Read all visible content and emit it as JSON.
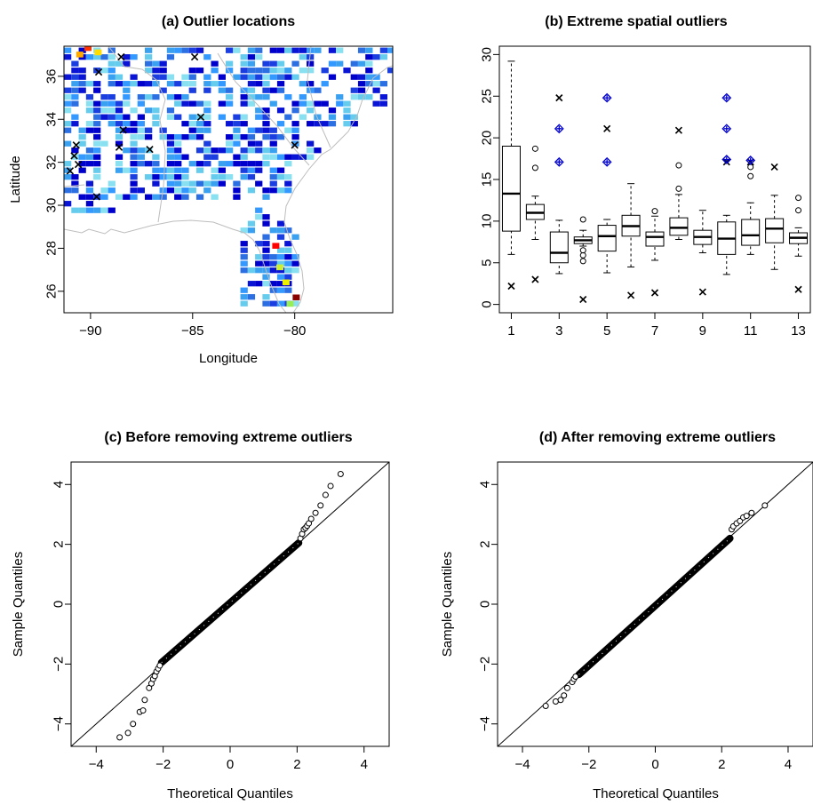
{
  "chart_data": [
    {
      "id": "a",
      "type": "heatmap",
      "title": "(a) Outlier locations",
      "xlabel": "Longitude",
      "ylabel": "Latitude",
      "xlim": [
        -91.3,
        -75.2
      ],
      "ylim": [
        25.0,
        37.4
      ],
      "xticks": [
        -90,
        -85,
        -80
      ],
      "xtick_labels": [
        "−90",
        "−85",
        "−80"
      ],
      "yticks": [
        26,
        28,
        30,
        32,
        34,
        36
      ],
      "ytick_labels": [
        "26",
        "28",
        "30",
        "32",
        "34",
        "36"
      ],
      "colors": {
        "low": "#0000cc",
        "mid": "#2c7fe0",
        "high": "#8fd8f0",
        "extreme": "#ff2a00",
        "marker": "#000000",
        "border": "#c0c0c0"
      },
      "hotspots": [
        {
          "lon": -90.3,
          "lat": 37.2,
          "color": "#ff3300"
        },
        {
          "lon": -90.7,
          "lat": 36.9,
          "color": "#ffaa00"
        },
        {
          "lon": -89.8,
          "lat": 37.0,
          "color": "#ffdd00"
        },
        {
          "lon": -81.1,
          "lat": 28.0,
          "color": "#ff0000"
        },
        {
          "lon": -80.9,
          "lat": 27.0,
          "color": "#ccee33"
        },
        {
          "lon": -80.6,
          "lat": 26.3,
          "color": "#eeee00"
        },
        {
          "lon": -80.4,
          "lat": 25.3,
          "color": "#99ee55"
        },
        {
          "lon": -80.1,
          "lat": 25.6,
          "color": "#880000"
        }
      ],
      "outlier_points": [
        {
          "lon": -89.6,
          "lat": 36.2
        },
        {
          "lon": -88.5,
          "lat": 36.9
        },
        {
          "lon": -84.9,
          "lat": 36.9
        },
        {
          "lon": -84.6,
          "lat": 34.1
        },
        {
          "lon": -88.4,
          "lat": 33.5
        },
        {
          "lon": -88.6,
          "lat": 32.7
        },
        {
          "lon": -87.1,
          "lat": 32.6
        },
        {
          "lon": -90.7,
          "lat": 32.8
        },
        {
          "lon": -90.8,
          "lat": 32.3
        },
        {
          "lon": -90.6,
          "lat": 31.9
        },
        {
          "lon": -91.0,
          "lat": 31.6
        },
        {
          "lon": -89.7,
          "lat": 30.4
        },
        {
          "lon": -80.0,
          "lat": 32.8
        }
      ]
    },
    {
      "id": "b",
      "type": "box",
      "title": "(b) Extreme spatial outliers",
      "xlim": [
        0.5,
        13.5
      ],
      "ylim": [
        -1,
        31
      ],
      "xticks": [
        1,
        3,
        5,
        7,
        9,
        11,
        13
      ],
      "xtick_labels": [
        "1",
        "3",
        "5",
        "7",
        "9",
        "11",
        "13"
      ],
      "yticks": [
        0,
        5,
        10,
        15,
        20,
        25,
        30
      ],
      "ytick_labels": [
        "0",
        "5",
        "10",
        "15",
        "20",
        "25",
        "30"
      ],
      "colors": {
        "box": "#000000",
        "diamond": "#0000cc"
      },
      "boxes": [
        {
          "x": 1,
          "whislo": 6.0,
          "q1": 8.8,
          "med": 13.3,
          "q3": 19.0,
          "whishi": 29.2,
          "fliers": [],
          "extreme": [
            2.2
          ],
          "flagged": []
        },
        {
          "x": 2,
          "whislo": 7.8,
          "q1": 10.2,
          "med": 11.0,
          "q3": 12.0,
          "whishi": 13.0,
          "fliers": [
            16.4,
            18.7
          ],
          "extreme": [
            3.0
          ],
          "flagged": []
        },
        {
          "x": 3,
          "whislo": 3.7,
          "q1": 5.0,
          "med": 6.2,
          "q3": 8.7,
          "whishi": 10.1,
          "fliers": [],
          "extreme": [
            24.8
          ],
          "flagged": [
            17.1,
            21.1
          ]
        },
        {
          "x": 4,
          "whislo": 7.0,
          "q1": 7.3,
          "med": 7.7,
          "q3": 8.1,
          "whishi": 8.9,
          "fliers": [
            5.2,
            5.9,
            6.5,
            10.2
          ],
          "extreme": [
            0.6
          ],
          "flagged": []
        },
        {
          "x": 5,
          "whislo": 3.8,
          "q1": 6.4,
          "med": 8.2,
          "q3": 9.5,
          "whishi": 10.2,
          "fliers": [],
          "extreme": [
            21.1
          ],
          "flagged": [
            17.1,
            24.8
          ]
        },
        {
          "x": 6,
          "whislo": 4.5,
          "q1": 8.2,
          "med": 9.4,
          "q3": 10.7,
          "whishi": 14.5,
          "fliers": [],
          "extreme": [
            1.1
          ],
          "flagged": []
        },
        {
          "x": 7,
          "whislo": 5.3,
          "q1": 7.0,
          "med": 8.1,
          "q3": 8.7,
          "whishi": 10.6,
          "fliers": [
            11.2
          ],
          "extreme": [
            1.4
          ],
          "flagged": []
        },
        {
          "x": 8,
          "whislo": 7.8,
          "q1": 8.3,
          "med": 9.2,
          "q3": 10.4,
          "whishi": 13.2,
          "fliers": [
            13.9,
            16.7
          ],
          "extreme": [
            20.9
          ],
          "flagged": []
        },
        {
          "x": 9,
          "whislo": 6.2,
          "q1": 7.2,
          "med": 8.1,
          "q3": 8.9,
          "whishi": 11.3,
          "fliers": [],
          "extreme": [
            1.5
          ],
          "flagged": []
        },
        {
          "x": 10,
          "whislo": 3.6,
          "q1": 6.0,
          "med": 7.9,
          "q3": 9.9,
          "whishi": 10.7,
          "fliers": [],
          "extreme": [
            17.1
          ],
          "flagged": [
            17.4,
            21.1,
            24.8
          ]
        },
        {
          "x": 11,
          "whislo": 6.0,
          "q1": 7.1,
          "med": 8.3,
          "q3": 10.2,
          "whishi": 12.2,
          "fliers": [
            15.4,
            16.5
          ],
          "extreme": [
            17.1
          ],
          "flagged": [
            17.3
          ]
        },
        {
          "x": 12,
          "whislo": 4.2,
          "q1": 7.4,
          "med": 9.1,
          "q3": 10.3,
          "whishi": 13.1,
          "fliers": [],
          "extreme": [
            16.5
          ],
          "flagged": []
        },
        {
          "x": 13,
          "whislo": 5.8,
          "q1": 7.3,
          "med": 8.0,
          "q3": 8.6,
          "whishi": 9.2,
          "fliers": [
            11.3,
            12.8
          ],
          "extreme": [
            1.8
          ],
          "flagged": []
        }
      ]
    },
    {
      "id": "c",
      "type": "scatter",
      "title": "(c) Before removing extreme outliers",
      "xlabel": "Theoretical Quantiles",
      "ylabel": "Sample Quantiles",
      "xlim": [
        -4.75,
        4.75
      ],
      "ylim": [
        -4.75,
        4.75
      ],
      "xticks": [
        -4,
        -2,
        0,
        2,
        4
      ],
      "xtick_labels": [
        "−4",
        "−2",
        "0",
        "2",
        "4"
      ],
      "yticks": [
        -4,
        -2,
        0,
        2,
        4
      ],
      "ytick_labels": [
        "−4",
        "−2",
        "0",
        "2",
        "4"
      ],
      "reference_line": {
        "slope": 1,
        "intercept": 0
      },
      "dense_band": {
        "from": [
          -2.05,
          -1.95
        ],
        "to": [
          2.05,
          2.05
        ]
      },
      "tail_points": [
        [
          -3.3,
          -4.45
        ],
        [
          -3.05,
          -4.3
        ],
        [
          -2.9,
          -4.0
        ],
        [
          -2.7,
          -3.6
        ],
        [
          -2.6,
          -3.55
        ],
        [
          -2.55,
          -3.2
        ],
        [
          -2.42,
          -2.8
        ],
        [
          -2.35,
          -2.65
        ],
        [
          -2.3,
          -2.5
        ],
        [
          -2.25,
          -2.4
        ],
        [
          -2.2,
          -2.25
        ],
        [
          -2.15,
          -2.15
        ],
        [
          -2.1,
          -2.05
        ],
        [
          2.1,
          2.2
        ],
        [
          2.15,
          2.35
        ],
        [
          2.2,
          2.5
        ],
        [
          2.25,
          2.55
        ],
        [
          2.3,
          2.62
        ],
        [
          2.35,
          2.7
        ],
        [
          2.42,
          2.85
        ],
        [
          2.55,
          3.05
        ],
        [
          2.7,
          3.3
        ],
        [
          2.85,
          3.65
        ],
        [
          3.0,
          3.95
        ],
        [
          3.3,
          4.35
        ]
      ]
    },
    {
      "id": "d",
      "type": "scatter",
      "title": "(d) After removing extreme outliers",
      "xlabel": "Theoretical Quantiles",
      "ylabel": "Sample Quantiles",
      "xlim": [
        -4.75,
        4.75
      ],
      "ylim": [
        -4.75,
        4.75
      ],
      "xticks": [
        -4,
        -2,
        0,
        2,
        4
      ],
      "xtick_labels": [
        "−4",
        "−2",
        "0",
        "2",
        "4"
      ],
      "yticks": [
        -4,
        -2,
        0,
        2,
        4
      ],
      "ytick_labels": [
        "−4",
        "−2",
        "0",
        "2",
        "4"
      ],
      "reference_line": {
        "slope": 1,
        "intercept": 0
      },
      "dense_band": {
        "from": [
          -2.3,
          -2.35
        ],
        "to": [
          2.25,
          2.2
        ]
      },
      "tail_points": [
        [
          -3.3,
          -3.4
        ],
        [
          -3.0,
          -3.25
        ],
        [
          -2.85,
          -3.2
        ],
        [
          -2.75,
          -3.05
        ],
        [
          -2.65,
          -2.8
        ],
        [
          -2.5,
          -2.6
        ],
        [
          -2.45,
          -2.5
        ],
        [
          -2.4,
          -2.42
        ],
        [
          2.3,
          2.5
        ],
        [
          2.35,
          2.6
        ],
        [
          2.45,
          2.7
        ],
        [
          2.55,
          2.78
        ],
        [
          2.65,
          2.9
        ],
        [
          2.75,
          2.95
        ],
        [
          2.9,
          3.05
        ],
        [
          3.3,
          3.3
        ]
      ]
    }
  ]
}
